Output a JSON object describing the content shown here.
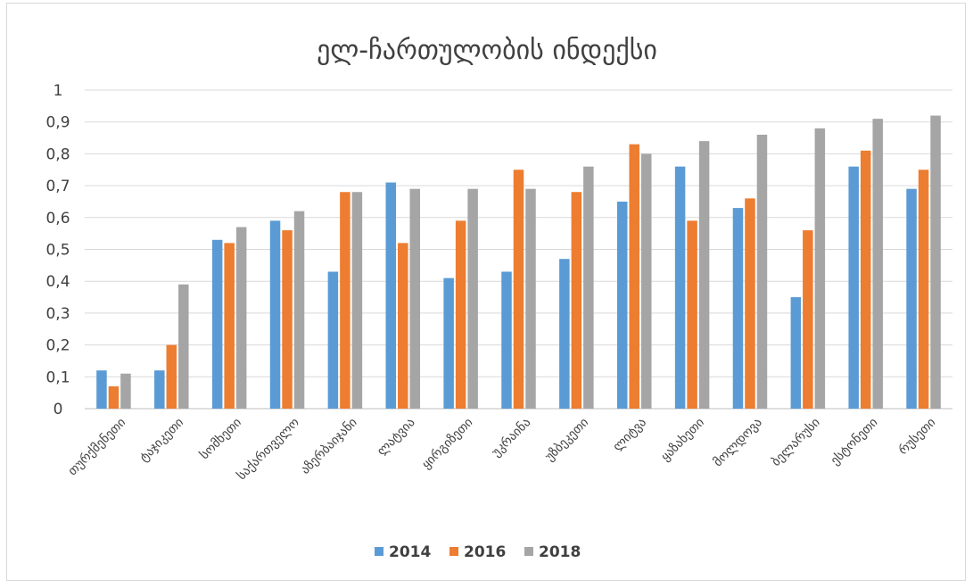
{
  "chart_data": {
    "type": "bar",
    "title": "ელ-ჩართულობის ინდექსი",
    "xlabel": "",
    "ylabel": "",
    "ylim": [
      0,
      1
    ],
    "yticks": [
      "0",
      "0,1",
      "0,2",
      "0,3",
      "0,4",
      "0,5",
      "0,6",
      "0,7",
      "0,8",
      "0,9",
      "1"
    ],
    "grid": true,
    "legend_position": "bottom",
    "categories": [
      "თურქმენეთი",
      "ტაჯიკეთი",
      "სომხეთი",
      "საქართველო",
      "აზერბაიჯანი",
      "ლატვია",
      "ყირგიზეთი",
      "უკრაინა",
      "უზბეკეთი",
      "ლიტვა",
      "ყაზახეთი",
      "მოლდოვა",
      "ბელარუსი",
      "ესტონეთი",
      "რუსეთი"
    ],
    "series": [
      {
        "name": "2014",
        "color": "#5b9bd5",
        "values": [
          0.12,
          0.12,
          0.53,
          0.59,
          0.43,
          0.71,
          0.41,
          0.43,
          0.47,
          0.65,
          0.76,
          0.63,
          0.35,
          0.76,
          0.69
        ]
      },
      {
        "name": "2016",
        "color": "#ed7d31",
        "values": [
          0.07,
          0.2,
          0.52,
          0.56,
          0.68,
          0.52,
          0.59,
          0.75,
          0.68,
          0.83,
          0.59,
          0.66,
          0.56,
          0.81,
          0.75
        ]
      },
      {
        "name": "2018",
        "color": "#a5a5a5",
        "values": [
          0.11,
          0.39,
          0.57,
          0.62,
          0.68,
          0.69,
          0.69,
          0.69,
          0.76,
          0.8,
          0.84,
          0.86,
          0.88,
          0.91,
          0.92
        ]
      }
    ]
  }
}
